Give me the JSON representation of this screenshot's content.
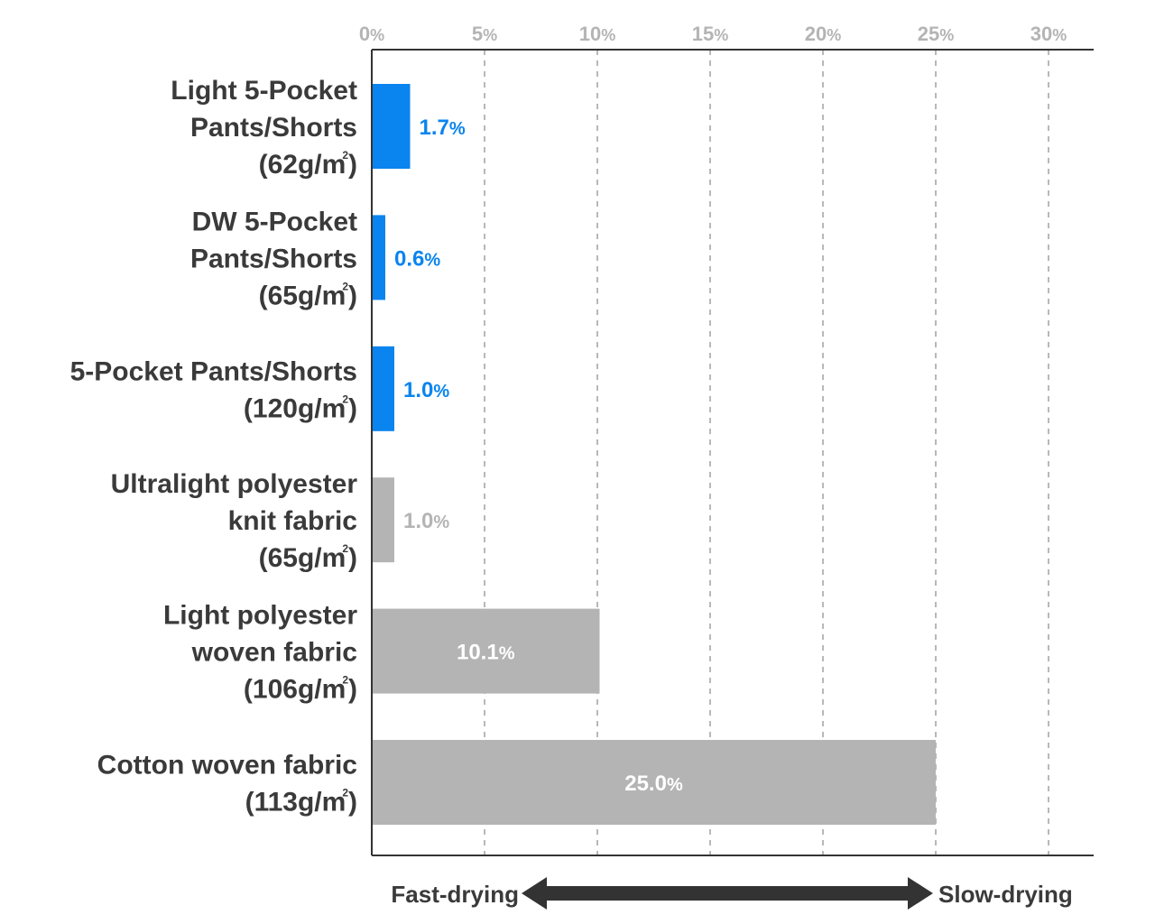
{
  "chart_data": {
    "type": "bar",
    "orientation": "horizontal",
    "xlim": [
      0,
      30
    ],
    "x_ticks": [
      0,
      5,
      10,
      15,
      20,
      25,
      30
    ],
    "x_tick_labels": [
      "0%",
      "5%",
      "10%",
      "15%",
      "20%",
      "25%",
      "30%"
    ],
    "grid": "vertical dashed",
    "categories": [
      {
        "lines": [
          "Light 5-Pocket",
          "Pants/Shorts",
          "(62g/m²)"
        ],
        "value": 1.7,
        "value_label": "1.7",
        "color": "#0a84ef",
        "highlight": true
      },
      {
        "lines": [
          "DW 5-Pocket",
          "Pants/Shorts",
          "(65g/m²)"
        ],
        "value": 0.6,
        "value_label": "0.6",
        "color": "#0a84ef",
        "highlight": true
      },
      {
        "lines": [
          "5-Pocket Pants/Shorts",
          "(120g/m²)"
        ],
        "value": 1.0,
        "value_label": "1.0",
        "color": "#0a84ef",
        "highlight": true
      },
      {
        "lines": [
          "Ultralight polyester",
          "knit fabric",
          "(65g/m²)"
        ],
        "value": 1.0,
        "value_label": "1.0",
        "color": "#b4b4b4",
        "highlight": false
      },
      {
        "lines": [
          "Light polyester",
          "woven fabric",
          "(106g/m²)"
        ],
        "value": 10.1,
        "value_label": "10.1",
        "color": "#b4b4b4",
        "highlight": false
      },
      {
        "lines": [
          "Cotton woven fabric",
          "(113g/m²)"
        ],
        "value": 25.0,
        "value_label": "25.0",
        "color": "#b4b4b4",
        "highlight": false
      }
    ],
    "value_suffix": "%",
    "legend": {
      "left_label": "Fast-drying",
      "right_label": "Slow-drying"
    }
  }
}
